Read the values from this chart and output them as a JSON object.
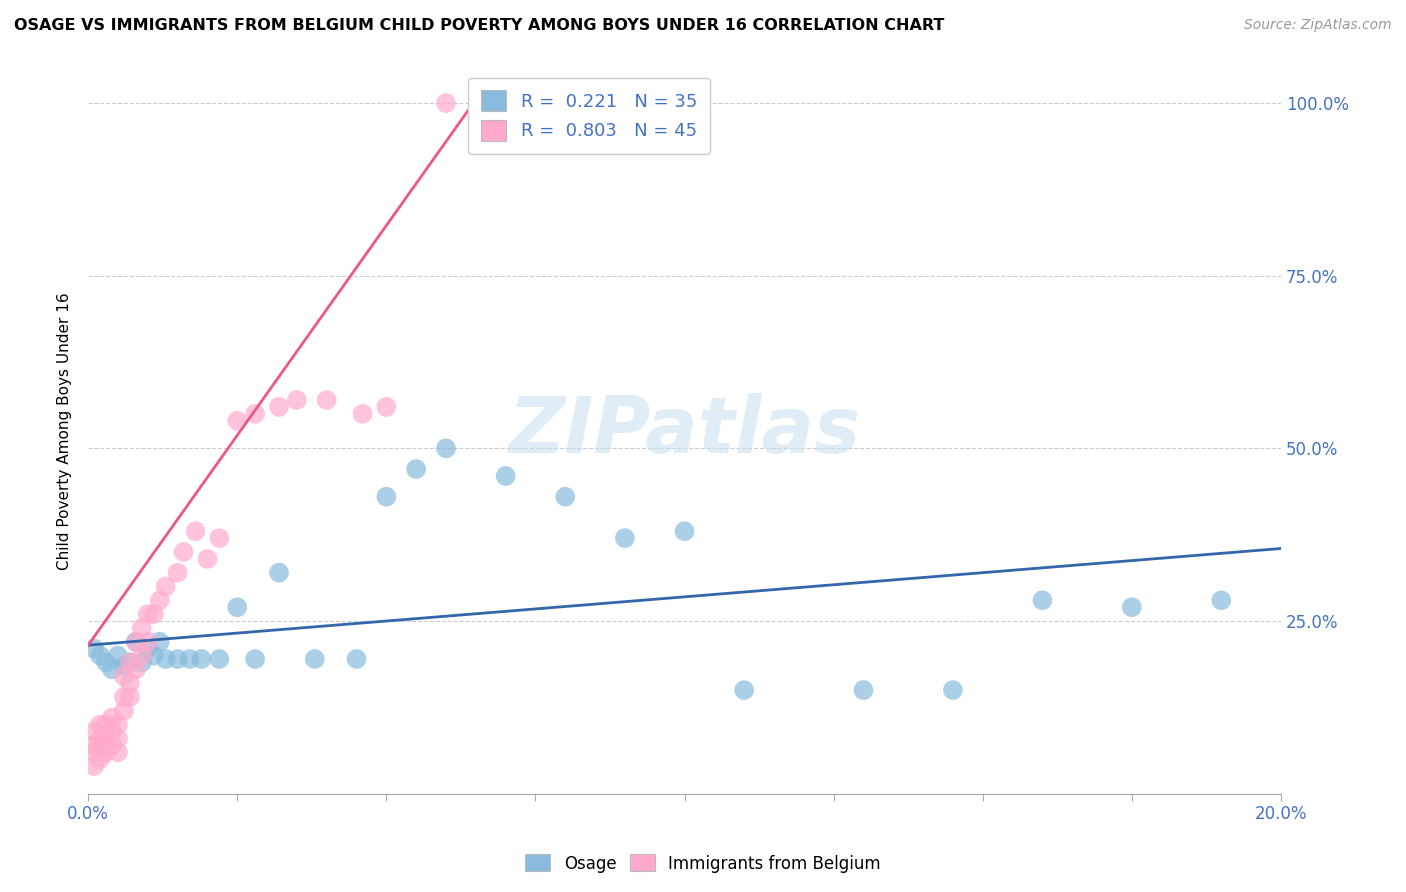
{
  "title": "OSAGE VS IMMIGRANTS FROM BELGIUM CHILD POVERTY AMONG BOYS UNDER 16 CORRELATION CHART",
  "source": "Source: ZipAtlas.com",
  "ylabel": "Child Poverty Among Boys Under 16",
  "xlim": [
    0.0,
    0.2
  ],
  "ylim": [
    0.0,
    1.05
  ],
  "yticks": [
    0.0,
    0.25,
    0.5,
    0.75,
    1.0
  ],
  "ytick_labels": [
    "",
    "25.0%",
    "50.0%",
    "75.0%",
    "100.0%"
  ],
  "xticks": [
    0.0,
    0.025,
    0.05,
    0.075,
    0.1,
    0.125,
    0.15,
    0.175,
    0.2
  ],
  "xtick_labels": [
    "0.0%",
    "",
    "",
    "",
    "",
    "",
    "",
    "",
    "20.0%"
  ],
  "watermark": "ZIPatlas",
  "blue_color": "#88bbdd",
  "pink_color": "#ffaacc",
  "blue_line_color": "#3366aa",
  "pink_line_color": "#ee5588",
  "osage_x": [
    0.001,
    0.002,
    0.003,
    0.004,
    0.005,
    0.006,
    0.007,
    0.008,
    0.009,
    0.01,
    0.011,
    0.012,
    0.013,
    0.015,
    0.017,
    0.019,
    0.022,
    0.025,
    0.028,
    0.032,
    0.038,
    0.045,
    0.05,
    0.055,
    0.06,
    0.07,
    0.08,
    0.09,
    0.1,
    0.11,
    0.13,
    0.145,
    0.16,
    0.175,
    0.19
  ],
  "osage_y": [
    0.21,
    0.2,
    0.19,
    0.18,
    0.2,
    0.185,
    0.19,
    0.22,
    0.19,
    0.21,
    0.2,
    0.22,
    0.195,
    0.195,
    0.195,
    0.195,
    0.195,
    0.27,
    0.195,
    0.32,
    0.195,
    0.195,
    0.43,
    0.47,
    0.5,
    0.46,
    0.43,
    0.37,
    0.38,
    0.15,
    0.15,
    0.15,
    0.28,
    0.27,
    0.28
  ],
  "belgium_x": [
    0.001,
    0.001,
    0.001,
    0.001,
    0.002,
    0.002,
    0.002,
    0.002,
    0.003,
    0.003,
    0.003,
    0.004,
    0.004,
    0.004,
    0.005,
    0.005,
    0.005,
    0.006,
    0.006,
    0.006,
    0.007,
    0.007,
    0.007,
    0.008,
    0.008,
    0.009,
    0.009,
    0.01,
    0.01,
    0.011,
    0.012,
    0.013,
    0.015,
    0.016,
    0.018,
    0.02,
    0.022,
    0.025,
    0.028,
    0.032,
    0.035,
    0.04,
    0.046,
    0.05,
    0.06
  ],
  "belgium_y": [
    0.04,
    0.06,
    0.07,
    0.09,
    0.05,
    0.07,
    0.08,
    0.1,
    0.06,
    0.08,
    0.1,
    0.07,
    0.09,
    0.11,
    0.06,
    0.08,
    0.1,
    0.12,
    0.14,
    0.17,
    0.14,
    0.16,
    0.19,
    0.18,
    0.22,
    0.2,
    0.24,
    0.22,
    0.26,
    0.26,
    0.28,
    0.3,
    0.32,
    0.35,
    0.38,
    0.34,
    0.37,
    0.54,
    0.55,
    0.56,
    0.57,
    0.57,
    0.55,
    0.56,
    1.0
  ],
  "osage_line_x0": 0.0,
  "osage_line_x1": 0.2,
  "osage_line_y0": 0.215,
  "osage_line_y1": 0.355,
  "belgium_line_x0": 0.0,
  "belgium_line_x1": 0.065,
  "belgium_line_y0": 0.215,
  "belgium_line_y1": 1.005
}
